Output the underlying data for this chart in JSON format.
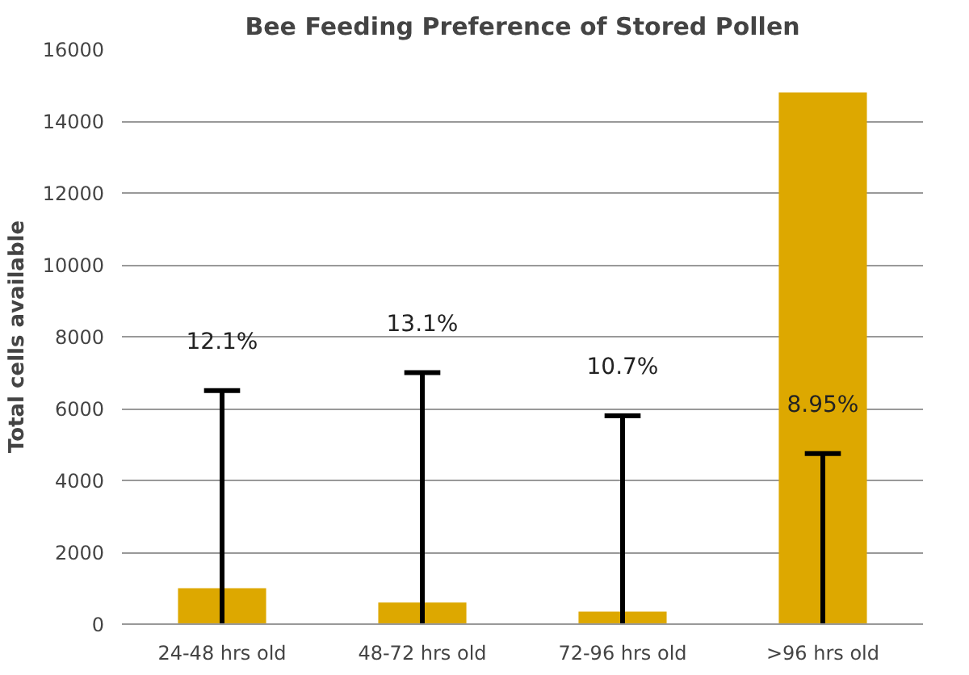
{
  "chart_data": {
    "type": "bar",
    "title": "Bee Feeding Preference of Stored Pollen",
    "ylabel": "Total cells available",
    "categories": [
      "24-48 hrs old",
      "48-72 hrs old",
      "72-96 hrs old",
      ">96 hrs old"
    ],
    "values": [
      1000,
      600,
      350,
      14800
    ],
    "color": "#dda800",
    "errors": [
      [
        0,
        6500
      ],
      [
        0,
        7000
      ],
      [
        0,
        5800
      ],
      [
        0,
        4750
      ]
    ],
    "ylim": [
      0,
      16000
    ],
    "yticks": [
      0,
      2000,
      4000,
      6000,
      8000,
      10000,
      12000,
      14000,
      16000
    ],
    "grid": "y",
    "annotations": [
      "12.1%",
      "13.1%",
      "10.7%",
      "8.95%"
    ]
  }
}
